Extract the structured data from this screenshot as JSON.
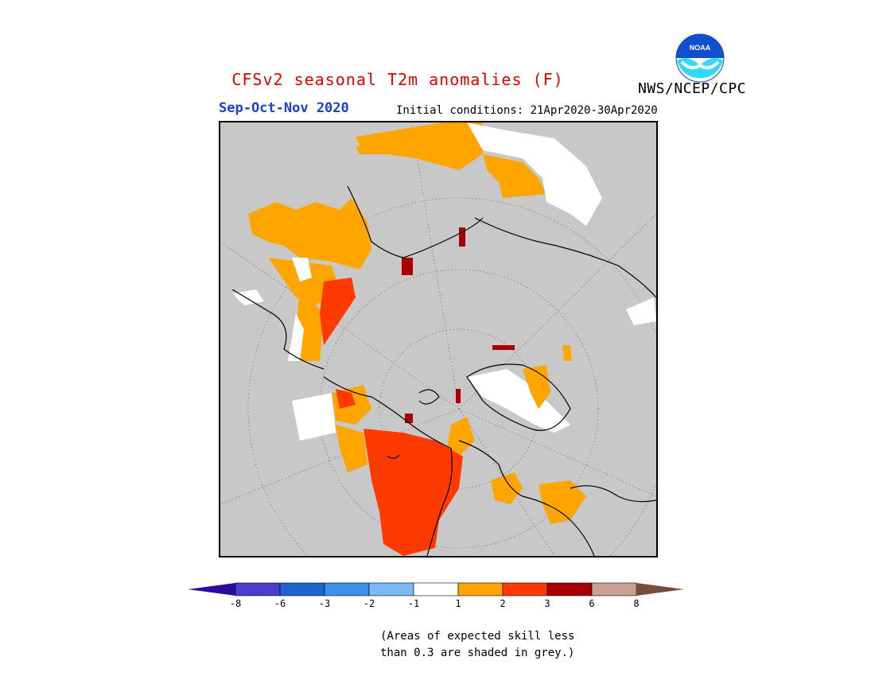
{
  "header": {
    "title": "CFSv2 seasonal T2m anomalies (F)",
    "agency": "NWS/NCEP/CPC",
    "logo_text": "NOAA"
  },
  "subheader": {
    "season": "Sep-Oct-Nov 2020",
    "initial_conditions": "Initial conditions: 21Apr2020-30Apr2020"
  },
  "map": {
    "projection": "north polar stereographic",
    "background_color": "#c8c8c8",
    "regions": [
      {
        "name": "western Canada / Alaska",
        "category": "2 to 3",
        "color": "#ff3a00"
      },
      {
        "name": "eastern Europe / western Russia",
        "category": "2 to 3",
        "color": "#ff3a00"
      },
      {
        "name": "Siberia",
        "category": "1 to 2",
        "color": "#ffa500"
      },
      {
        "name": "Greenland",
        "category": "-1 to 1",
        "color": "#ffffff"
      },
      {
        "name": "Scandinavia",
        "category": "1 to 2",
        "color": "#ffa500"
      },
      {
        "name": "eastern Canada",
        "category": "1 to 2",
        "color": "#ffa500"
      }
    ]
  },
  "colorbar": {
    "tick_labels": [
      "-8",
      "-6",
      "-3",
      "-2",
      "-1",
      "1",
      "2",
      "3",
      "6",
      "8"
    ],
    "colors": [
      "#2a0aa0",
      "#4a3ecf",
      "#1f63cf",
      "#3e8fea",
      "#7db8f2",
      "#ffffff",
      "#ffa500",
      "#ff3a00",
      "#a80000",
      "#c9a193",
      "#7a4a3a"
    ]
  },
  "footer": {
    "note_line1": "(Areas of expected skill less",
    "note_line2": "than 0.3 are shaded in grey.)"
  }
}
